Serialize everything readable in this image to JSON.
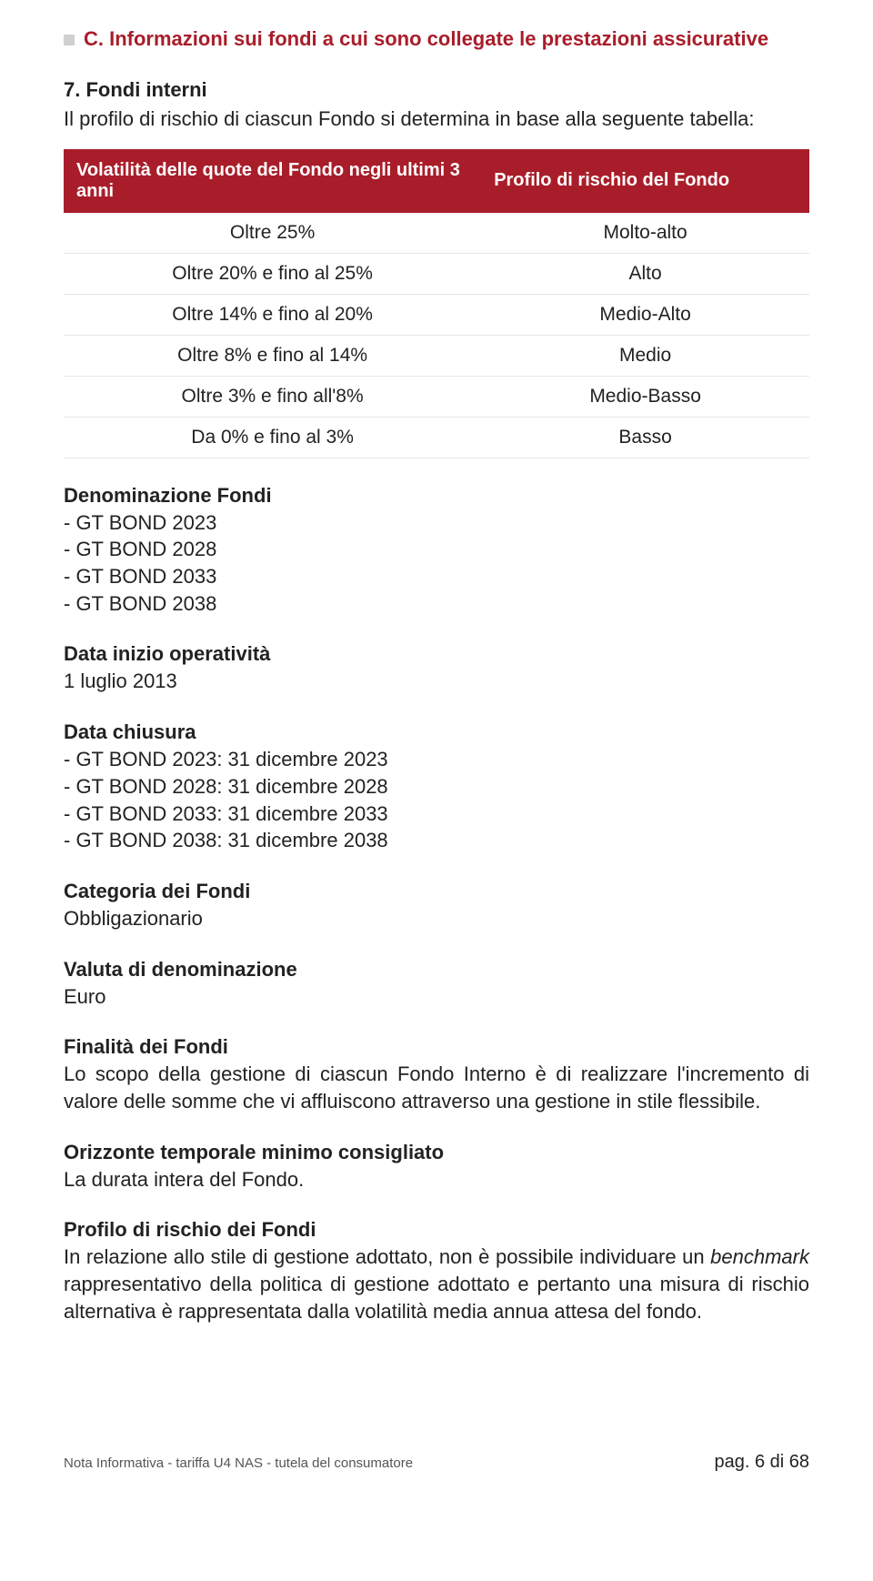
{
  "colors": {
    "accent": "#a91d2a",
    "text": "#222222",
    "bullet": "#d0d0d0",
    "row_border": "#e5e5e5",
    "footer_text": "#555555",
    "background": "#ffffff"
  },
  "typography": {
    "body_fontsize_pt": 16,
    "title_fontsize_pt": 16,
    "footer_left_fontsize_pt": 11,
    "footer_right_fontsize_pt": 15
  },
  "section": {
    "title": "C. Informazioni sui fondi a cui sono collegate le prestazioni assicurative"
  },
  "subsection": {
    "number_title": "7. Fondi interni",
    "intro": "Il profilo di rischio di ciascun Fondo si determina in base alla seguente tabella:"
  },
  "risk_table": {
    "type": "table",
    "header_bg": "#a91d2a",
    "header_fg": "#ffffff",
    "columns": [
      "Volatilità delle quote del Fondo negli ultimi 3 anni",
      "Profilo di rischio del Fondo"
    ],
    "rows": [
      [
        "Oltre 25%",
        "Molto-alto"
      ],
      [
        "Oltre 20% e fino al 25%",
        "Alto"
      ],
      [
        "Oltre 14% e fino al 20%",
        "Medio-Alto"
      ],
      [
        "Oltre 8% e fino al 14%",
        "Medio"
      ],
      [
        "Oltre 3% e fino all'8%",
        "Medio-Basso"
      ],
      [
        "Da 0% e fino al 3%",
        "Basso"
      ]
    ]
  },
  "denominazione": {
    "title": "Denominazione Fondi",
    "items": [
      "- GT BOND 2023",
      "- GT BOND 2028",
      "- GT BOND 2033",
      "- GT BOND 2038"
    ]
  },
  "data_inizio": {
    "title": "Data inizio operatività",
    "value": "1 luglio 2013"
  },
  "data_chiusura": {
    "title": "Data chiusura",
    "items": [
      "- GT BOND 2023: 31 dicembre 2023",
      "- GT BOND 2028: 31 dicembre 2028",
      "- GT BOND 2033: 31 dicembre 2033",
      "- GT BOND 2038: 31 dicembre 2038"
    ]
  },
  "categoria": {
    "title": "Categoria dei Fondi",
    "value": "Obbligazionario"
  },
  "valuta": {
    "title": "Valuta di denominazione",
    "value": "Euro"
  },
  "finalita": {
    "title": "Finalità dei Fondi",
    "text": "Lo scopo della gestione di ciascun Fondo Interno è di realizzare l'incremento di valore delle somme che vi affluiscono attraverso una gestione in stile flessibile."
  },
  "orizzonte": {
    "title": "Orizzonte temporale minimo consigliato",
    "value": "La durata intera del Fondo."
  },
  "profilo_rischio": {
    "title": "Profilo di rischio dei Fondi",
    "text_pre": "In relazione allo stile di gestione adottato, non è possibile individuare un ",
    "benchmark_word": "benchmark",
    "text_post": " rappresentativo della politica di gestione adottato e pertanto una misura di rischio alternativa è rappresentata dalla volatilità media annua attesa del fondo."
  },
  "footer": {
    "left": "Nota Informativa - tariffa U4 NAS - tutela del consumatore",
    "right": "pag. 6 di 68"
  }
}
